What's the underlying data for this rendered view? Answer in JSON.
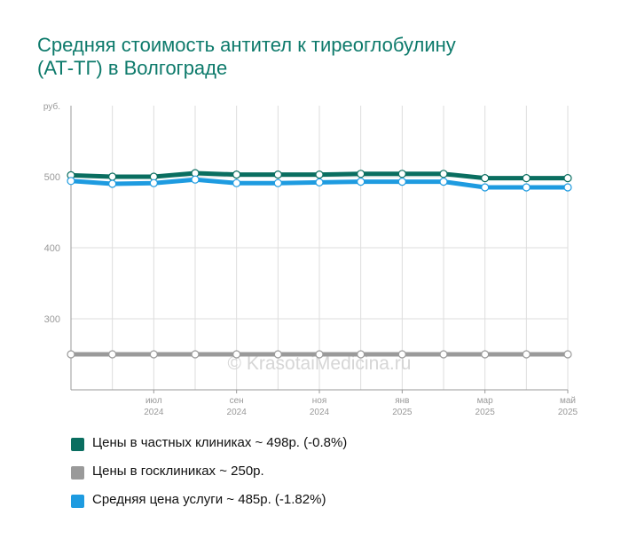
{
  "title_lines": [
    "Средняя стоимость антител к тиреоглобулину",
    "(АТ-ТГ) в Волгограде"
  ],
  "colors": {
    "private": "#0a6e60",
    "public": "#9a9a9a",
    "average": "#1e9be0",
    "grid": "#dddddd",
    "axis": "#999999",
    "tick_text": "#999999"
  },
  "watermark": "© KrasotaiMedicina.ru",
  "chart_data": {
    "type": "line",
    "title": "Средняя стоимость антител к тиреоглобулину (АТ-ТГ) в Волгограде",
    "ylabel": "руб.",
    "ylim": [
      200,
      600
    ],
    "yticks": [
      300,
      400,
      500
    ],
    "grid": true,
    "legend_position": "bottom",
    "x": [
      "2024-05",
      "2024-06",
      "2024-07",
      "2024-08",
      "2024-09",
      "2024-10",
      "2024-11",
      "2024-12",
      "2025-01",
      "2025-02",
      "2025-03",
      "2025-04",
      "2025-05"
    ],
    "x_tick_labels": [
      {
        "month": "июл",
        "year": "2024",
        "index": 2
      },
      {
        "month": "сен",
        "year": "2024",
        "index": 4
      },
      {
        "month": "ноя",
        "year": "2024",
        "index": 6
      },
      {
        "month": "янв",
        "year": "2025",
        "index": 8
      },
      {
        "month": "мар",
        "year": "2025",
        "index": 10
      },
      {
        "month": "май",
        "year": "2025",
        "index": 12
      }
    ],
    "series": [
      {
        "key": "private",
        "name": "Цены в частных клиниках ~ 498р. (-0.8%)",
        "values": [
          502,
          500,
          500,
          505,
          503,
          503,
          503,
          504,
          504,
          504,
          498,
          498,
          498
        ]
      },
      {
        "key": "public",
        "name": "Цены в госклиниках ~ 250р.",
        "values": [
          250,
          250,
          250,
          250,
          250,
          250,
          250,
          250,
          250,
          250,
          250,
          250,
          250
        ]
      },
      {
        "key": "average",
        "name": "Средняя цена услуги ~ 485р. (-1.82%)",
        "values": [
          494,
          490,
          491,
          496,
          491,
          491,
          492,
          493,
          493,
          493,
          485,
          485,
          485
        ]
      }
    ]
  }
}
